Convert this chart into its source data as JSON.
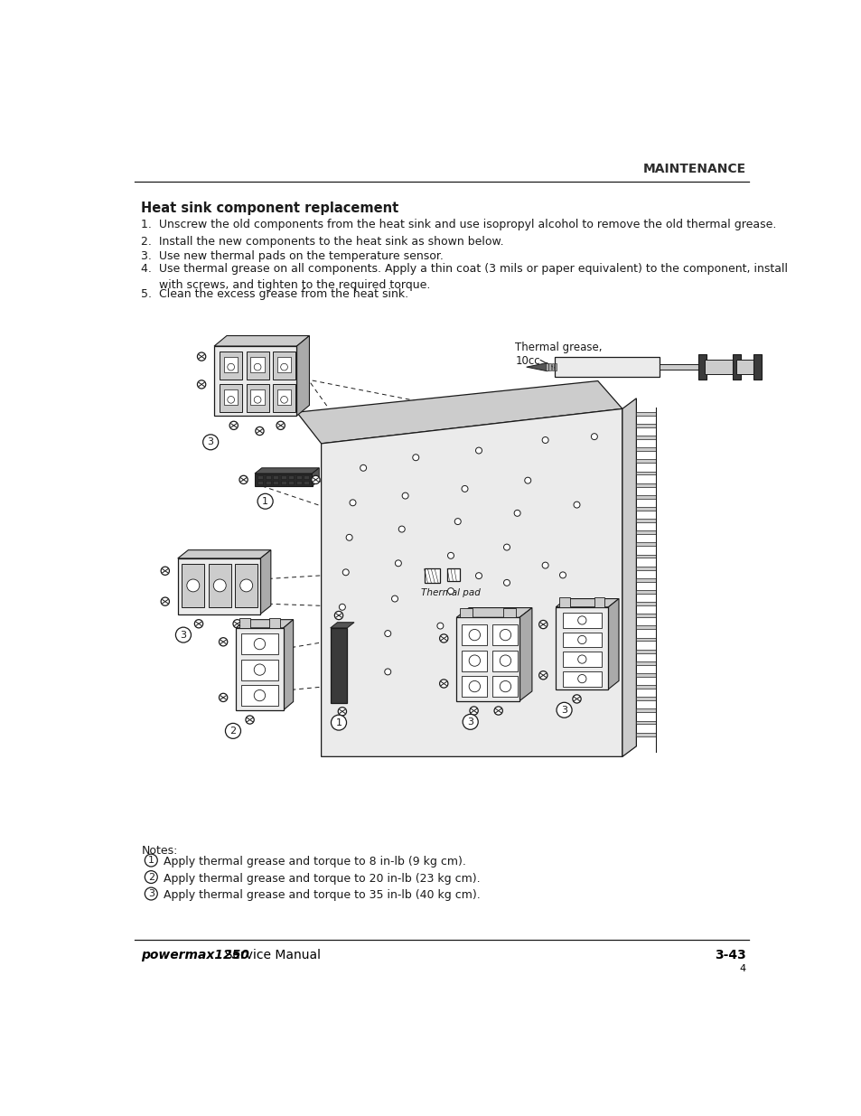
{
  "bg_color": "#ffffff",
  "header_text": "MAINTENANCE",
  "header_fontsize": 10,
  "header_color": "#2d2d2d",
  "title_text": "Heat sink component replacement",
  "title_fontsize": 10.5,
  "title_color": "#1a1a1a",
  "body_items": [
    "1.  Unscrew the old components from the heat sink and use isopropyl alcohol to remove the old thermal grease.",
    "2.  Install the new components to the heat sink as shown below.",
    "3.  Use new thermal pads on the temperature sensor.",
    "4.  Use thermal grease on all components. Apply a thin coat (3 mils or paper equivalent) to the component, install\n     with screws, and tighten to the required torque.",
    "5.  Clean the excess grease from the heat sink."
  ],
  "body_fontsize": 9.0,
  "body_color": "#1a1a1a",
  "notes_label": "Notes:",
  "note1": "Apply thermal grease and torque to 8 in-lb (9 kg cm).",
  "note2": "Apply thermal grease and torque to 20 in-lb (23 kg cm).",
  "note3": "Apply thermal grease and torque to 35 in-lb (40 kg cm).",
  "notes_fontsize": 9.0,
  "footer_brand": "powermax1250",
  "footer_manual": "  Service Manual",
  "footer_page": "3-43",
  "footer_sub": "4",
  "footer_fontsize": 10,
  "line_color": "#2d2d2d",
  "thermal_grease_label": "Thermal grease,\n10cc",
  "thermal_pad_label": "Thermal pad"
}
